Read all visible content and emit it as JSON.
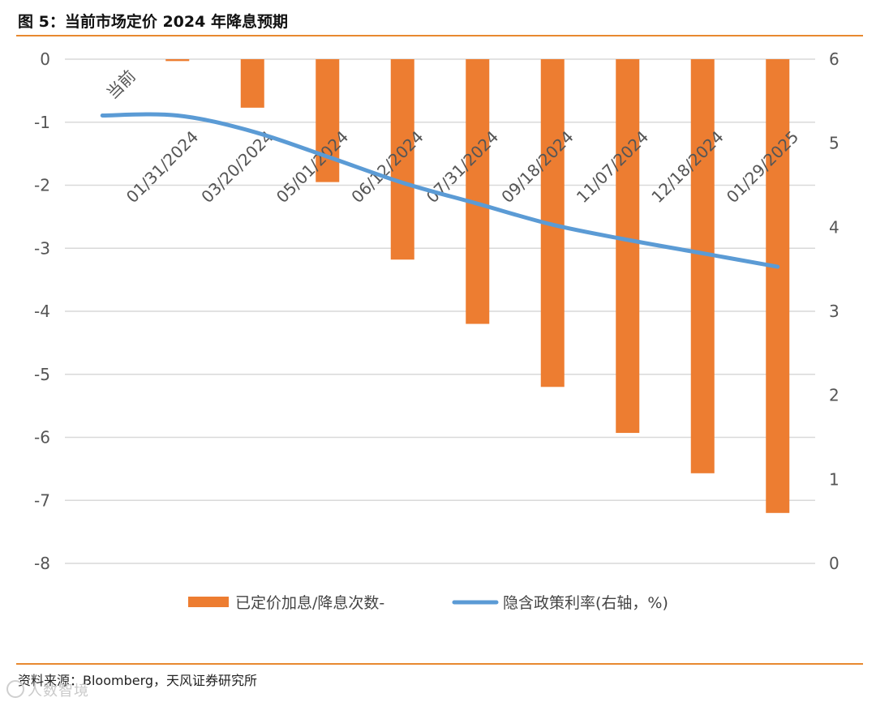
{
  "header": {
    "title": "图 5：当前市场定价 2024 年降息预期"
  },
  "footer": {
    "source": "资料来源：Bloomberg，天风证券研究所",
    "watermark": "人数智境"
  },
  "colors": {
    "bar": "#ED7D31",
    "line": "#5B9BD5",
    "accent": "#E8892F",
    "grid": "#D9D9D9"
  },
  "chart_data": {
    "type": "bar",
    "title": "图 5：当前市场定价 2024 年降息预期",
    "categories": [
      "当前",
      "01/31/2024",
      "03/20/2024",
      "05/01/2024",
      "06/12/2024",
      "07/31/2024",
      "09/18/2024",
      "11/07/2024",
      "12/18/2024",
      "01/29/2025"
    ],
    "series": [
      {
        "name": "已定价加息/降息次数-",
        "type": "bar",
        "axis": "left",
        "values": [
          0,
          -0.03,
          -0.77,
          -1.95,
          -3.18,
          -4.2,
          -5.2,
          -5.93,
          -6.57,
          -7.2
        ]
      },
      {
        "name": "隐含政策利率(右轴，%)",
        "type": "line",
        "axis": "right",
        "values": [
          5.33,
          5.33,
          5.14,
          4.84,
          4.53,
          4.28,
          4.03,
          3.85,
          3.69,
          3.53
        ]
      }
    ],
    "ylim_left": [
      -8,
      0
    ],
    "yticks_left": [
      "0",
      "-1",
      "-2",
      "-3",
      "-4",
      "-5",
      "-6",
      "-7",
      "-8"
    ],
    "ylim_right": [
      0,
      6
    ],
    "yticks_right": [
      "6",
      "5",
      "4",
      "3",
      "2",
      "1",
      "0"
    ],
    "grid": true,
    "legend": "bottom"
  }
}
